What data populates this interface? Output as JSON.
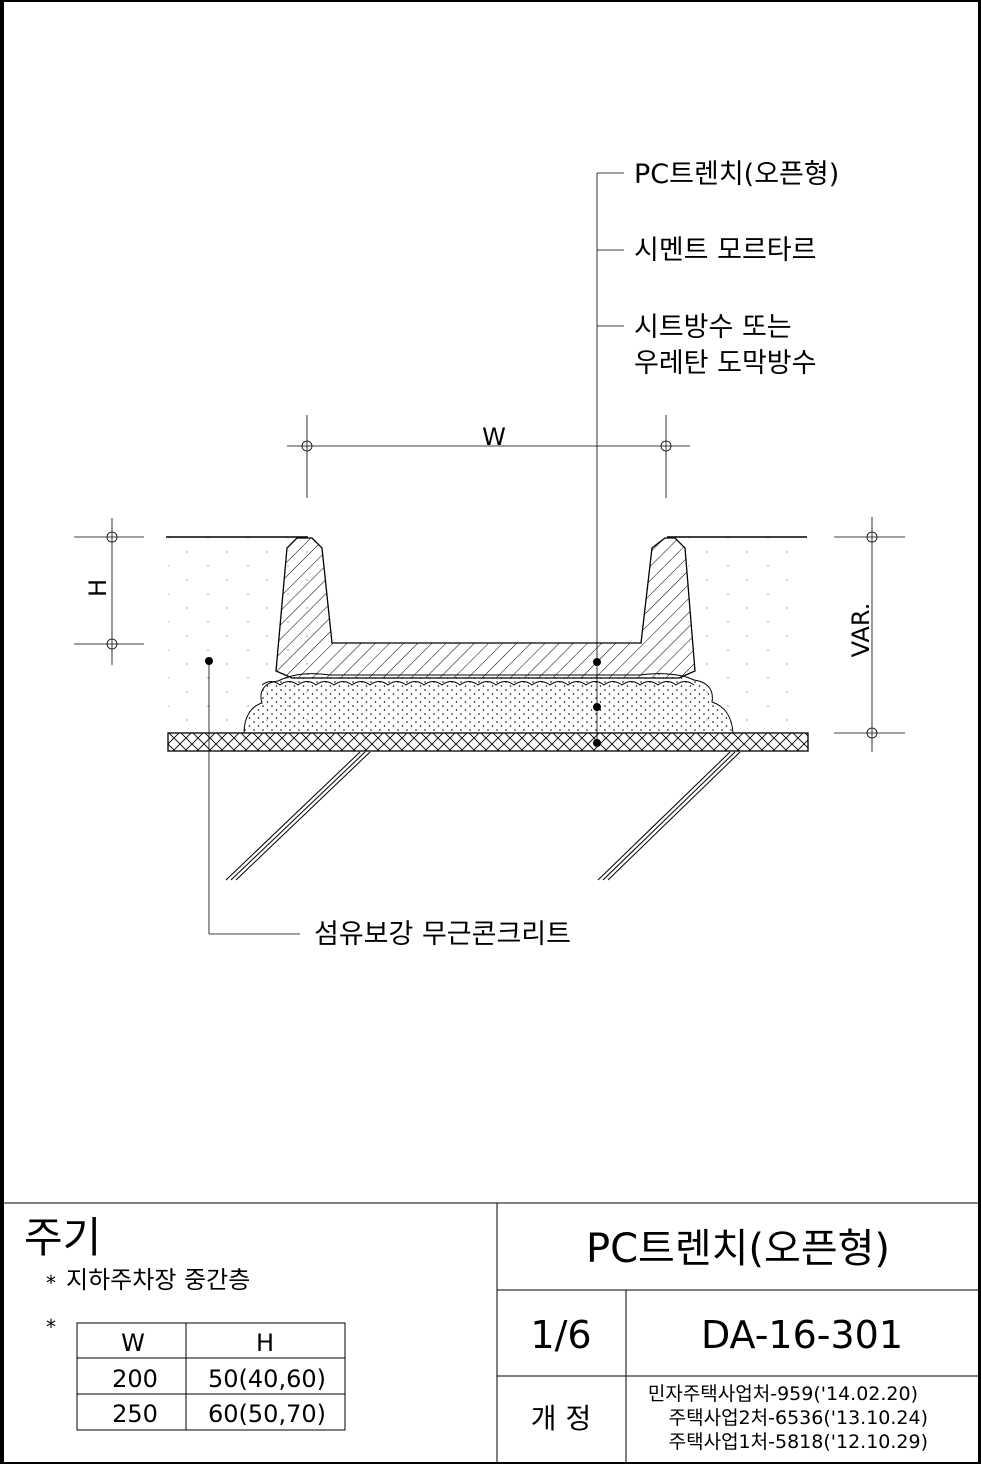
{
  "drawing": {
    "labels": {
      "pc_trench": "PC트렌치(오픈형)",
      "cement_mortar": "시멘트 모르타르",
      "waterproof_line1": "시트방수 또는",
      "waterproof_line2": "우레탄 도막방수",
      "fiber_concrete": "섬유보강 무근콘크리트"
    },
    "dimensions": {
      "width": "W",
      "height": "H",
      "variable": "VAR."
    }
  },
  "notes": {
    "title": "주기",
    "item1_mark": "*",
    "item1_text": "지하주차장 중간층",
    "item2_mark": "*",
    "table": {
      "headers": [
        "W",
        "H"
      ],
      "rows": [
        [
          "200",
          "50(40,60)"
        ],
        [
          "250",
          "60(50,70)"
        ]
      ]
    }
  },
  "title_block": {
    "title": "PC트렌치(오픈형)",
    "sheet": "1/6",
    "code": "DA-16-301",
    "revision_label": "개 정",
    "revisions": [
      "민자주택사업처-959('14.02.20)",
      "주택사업2처-6536('13.10.24)",
      "주택사업1처-5818('12.10.29)"
    ]
  }
}
